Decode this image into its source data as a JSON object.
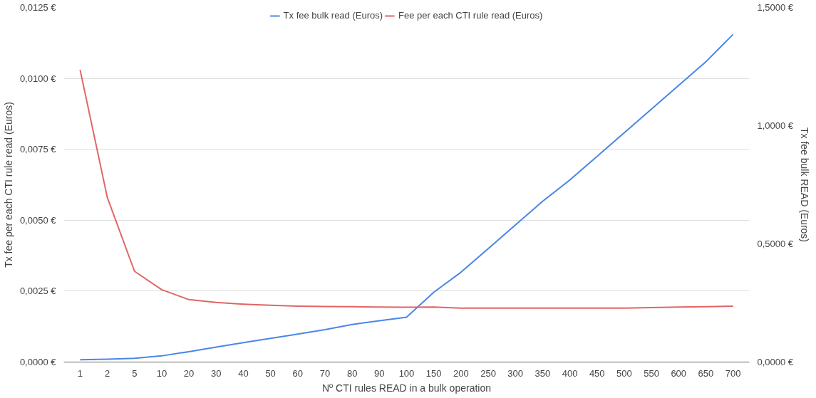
{
  "chart_data": {
    "type": "line",
    "xlabel": "Nº CTI rules READ in a bulk operation",
    "ylabel": "Tx fee per each CTI rule read (Euros)",
    "y2label": "Tx fee bulk READ (Euros)",
    "categories": [
      "1",
      "2",
      "5",
      "10",
      "20",
      "30",
      "40",
      "50",
      "60",
      "70",
      "80",
      "90",
      "100",
      "150",
      "200",
      "250",
      "300",
      "350",
      "400",
      "450",
      "500",
      "550",
      "600",
      "650",
      "700"
    ],
    "series": [
      {
        "name": "Tx fee bulk read (Euros)",
        "color": "#4a86e8",
        "axis": "y2",
        "values": [
          0.01,
          0.012,
          0.016,
          0.026,
          0.044,
          0.063,
          0.082,
          0.1,
          0.118,
          0.137,
          0.159,
          0.175,
          0.19,
          0.295,
          0.38,
          0.48,
          0.58,
          0.68,
          0.77,
          0.87,
          0.97,
          1.07,
          1.17,
          1.27,
          1.386
        ]
      },
      {
        "name": "Fee per each CTI rule read (Euros)",
        "color": "#e06666",
        "values": [
          0.0103,
          0.0058,
          0.0032,
          0.00255,
          0.0022,
          0.0021,
          0.00204,
          0.002,
          0.00197,
          0.00196,
          0.00195,
          0.00194,
          0.00193,
          0.00194,
          0.0019,
          0.0019,
          0.0019,
          0.0019,
          0.0019,
          0.0019,
          0.0019,
          0.00192,
          0.00194,
          0.00195,
          0.00197
        ]
      }
    ],
    "ylim": [
      0,
      0.0125
    ],
    "yticks": [
      {
        "value": 0,
        "label": "0,0000 €"
      },
      {
        "value": 0.0025,
        "label": "0,0025 €"
      },
      {
        "value": 0.005,
        "label": "0,0050 €"
      },
      {
        "value": 0.0075,
        "label": "0,0075 €"
      },
      {
        "value": 0.01,
        "label": "0,0100 €"
      },
      {
        "value": 0.0125,
        "label": "0,0125 €"
      }
    ],
    "y2lim": [
      0,
      1.5
    ],
    "y2ticks": [
      {
        "value": 0,
        "label": "0,0000 €"
      },
      {
        "value": 0.5,
        "label": "0,5000 €"
      },
      {
        "value": 1.0,
        "label": "1,0000 €"
      },
      {
        "value": 1.5,
        "label": "1,5000 €"
      }
    ],
    "grid": "y",
    "legend": "top",
    "marker": "none",
    "line_style": "solid"
  }
}
